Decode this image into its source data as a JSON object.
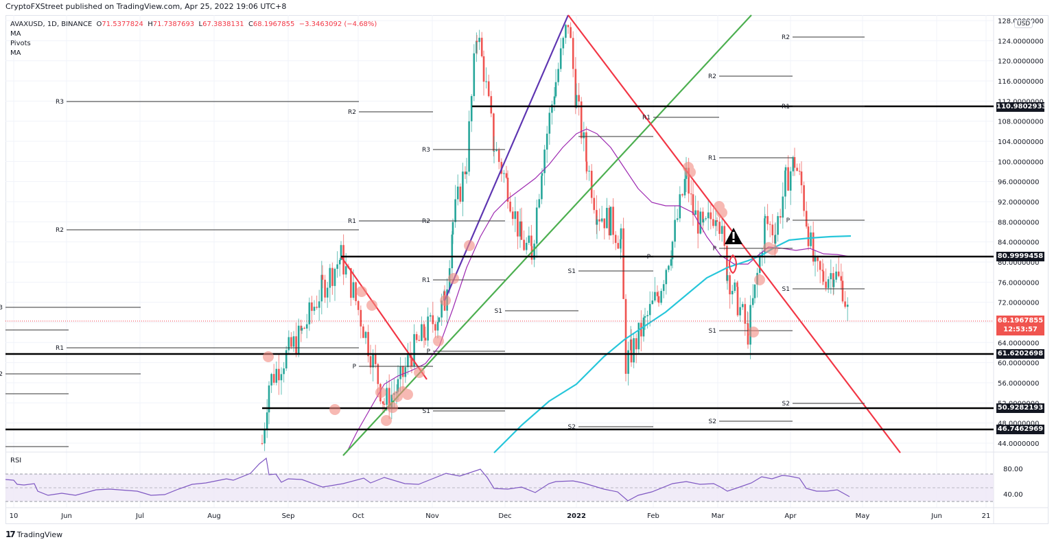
{
  "header": {
    "publisher": "CryptoFXStreet published on TradingView.com, Apr 25, 2022 19:06 UTC+8"
  },
  "legend": {
    "symbol": "AVAXUSD, 1D, BINANCE",
    "open_label": "O",
    "open": "71.5377824",
    "high_label": "H",
    "high": "71.7387693",
    "low_label": "L",
    "low": "67.3838131",
    "close_label": "C",
    "close": "68.1967855",
    "change": "−3.3463092 (−4.68%)",
    "indicators": [
      "MA",
      "Pivots",
      "MA"
    ]
  },
  "price_axis": {
    "currency": "USD",
    "ticks": [
      "128.0000000",
      "124.0000000",
      "120.0000000",
      "116.0000000",
      "112.0000000",
      "108.0000000",
      "104.0000000",
      "100.0000000",
      "96.0000000",
      "92.0000000",
      "88.0000000",
      "84.0000000",
      "80.0000000",
      "76.0000000",
      "72.0000000",
      "68.0000000",
      "64.0000000",
      "60.0000000",
      "56.0000000",
      "52.0000000",
      "48.0000000",
      "44.0000000"
    ],
    "tags": [
      {
        "value": "110.9802933"
      },
      {
        "value": "80.9999458"
      },
      {
        "value": "61.6202698"
      },
      {
        "value": "50.9282193"
      },
      {
        "value": "46.7462969"
      }
    ],
    "last_price": "68.1967855",
    "countdown": "12:53:57"
  },
  "time_axis": {
    "labels": [
      "10",
      "Jun",
      "Jul",
      "Aug",
      "Sep",
      "Oct",
      "Nov",
      "Dec",
      "2022",
      "Feb",
      "Mar",
      "Apr",
      "May",
      "Jun",
      "21"
    ]
  },
  "rsi": {
    "label": "RSI",
    "ticks": [
      "80.00",
      "40.00"
    ]
  },
  "footer": {
    "brand": "TradingView",
    "logo": "17"
  },
  "colors": {
    "up": "#26a69a",
    "down": "#ef5350",
    "ma_fast": "#9c27b0",
    "ma_slow": "#26c6da",
    "trend_red": "#f23645",
    "trend_green": "#4caf50",
    "trend_purple": "#5e35b1",
    "rsi_line": "#7e57c2",
    "rsi_band": "#ede7f6",
    "last_price": "#f0544f"
  },
  "chart_data": {
    "type": "candlestick",
    "title": "AVAXUSD, 1D, BINANCE",
    "xlabel": "",
    "ylabel": "USD",
    "ylim": [
      42,
      129
    ],
    "x_range": [
      "May 10 2021",
      "Jun 21 2022"
    ],
    "ohlc_last": {
      "open": 71.5377824,
      "high": 71.7387693,
      "low": 67.3838131,
      "close": 68.1967855,
      "change": -3.3463092,
      "change_pct": -4.68
    },
    "horizontal_levels": [
      110.9802933,
      80.9999458,
      61.6202698,
      50.9282193,
      46.7462969
    ],
    "pivots": [
      {
        "label": "R3",
        "price": 70.5,
        "period": "Jun"
      },
      {
        "label": "R2",
        "price": 57.8,
        "period": "Jun"
      },
      {
        "label": "R3",
        "price": 112.0,
        "period": "Aug"
      },
      {
        "label": "R2",
        "price": 86.4,
        "period": "Aug"
      },
      {
        "label": "R1",
        "price": 62.6,
        "period": "Aug"
      },
      {
        "label": "R2",
        "price": 110.0,
        "period": "Sep"
      },
      {
        "label": "R1",
        "price": 88.0,
        "period": "Sep"
      },
      {
        "label": "P",
        "price": 59.2,
        "period": "Sep"
      },
      {
        "label": "S1",
        "price": 50.6,
        "period": "Sep"
      },
      {
        "label": "R3",
        "price": 102.0,
        "period": "Oct"
      },
      {
        "label": "R2",
        "price": 88.0,
        "period": "Oct"
      },
      {
        "label": "R1",
        "price": 76.6,
        "period": "Oct"
      },
      {
        "label": "P",
        "price": 62.0,
        "period": "Oct"
      },
      {
        "label": "S1",
        "price": 70.0,
        "period": "Nov"
      },
      {
        "label": "S1",
        "price": 78.8,
        "period": "Dec"
      },
      {
        "label": "S2",
        "price": 46.8,
        "period": "Dec"
      },
      {
        "label": "R1",
        "price": 108.8,
        "period": "Jan"
      },
      {
        "label": "P",
        "price": 81.0,
        "period": "Jan"
      },
      {
        "label": "R2",
        "price": 117.0,
        "period": "Feb"
      },
      {
        "label": "R1",
        "price": 100.8,
        "period": "Feb"
      },
      {
        "label": "P",
        "price": 82.0,
        "period": "Feb"
      },
      {
        "label": "S1",
        "price": 66.4,
        "period": "Feb"
      },
      {
        "label": "S2",
        "price": 48.0,
        "period": "Feb"
      },
      {
        "label": "R2",
        "price": 124.8,
        "period": "Mar"
      },
      {
        "label": "R1",
        "price": 111.0,
        "period": "Mar"
      },
      {
        "label": "P",
        "price": 88.4,
        "period": "Mar"
      },
      {
        "label": "S1",
        "price": 74.8,
        "period": "Mar"
      },
      {
        "label": "S2",
        "price": 52.0,
        "period": "Mar"
      }
    ],
    "price_path": [
      {
        "date": "2021-08-23",
        "price": 44
      },
      {
        "date": "2021-09-01",
        "price": 55
      },
      {
        "date": "2021-09-23",
        "price": 81
      },
      {
        "date": "2021-10-10",
        "price": 52
      },
      {
        "date": "2021-10-20",
        "price": 55
      },
      {
        "date": "2021-11-01",
        "price": 72
      },
      {
        "date": "2021-11-10",
        "price": 90
      },
      {
        "date": "2021-11-21",
        "price": 128
      },
      {
        "date": "2021-12-05",
        "price": 80
      },
      {
        "date": "2021-12-27",
        "price": 128
      },
      {
        "date": "2022-01-05",
        "price": 110
      },
      {
        "date": "2022-01-22",
        "price": 55
      },
      {
        "date": "2022-02-10",
        "price": 80
      },
      {
        "date": "2022-02-17",
        "price": 98
      },
      {
        "date": "2022-03-01",
        "price": 91
      },
      {
        "date": "2022-03-14",
        "price": 66
      },
      {
        "date": "2022-04-02",
        "price": 103
      },
      {
        "date": "2022-04-10",
        "price": 75
      },
      {
        "date": "2022-04-25",
        "price": 68.2
      }
    ],
    "rsi_levels": {
      "upper": 70,
      "middle": 50,
      "lower": 30,
      "axis_ticks": [
        80,
        40
      ]
    }
  }
}
